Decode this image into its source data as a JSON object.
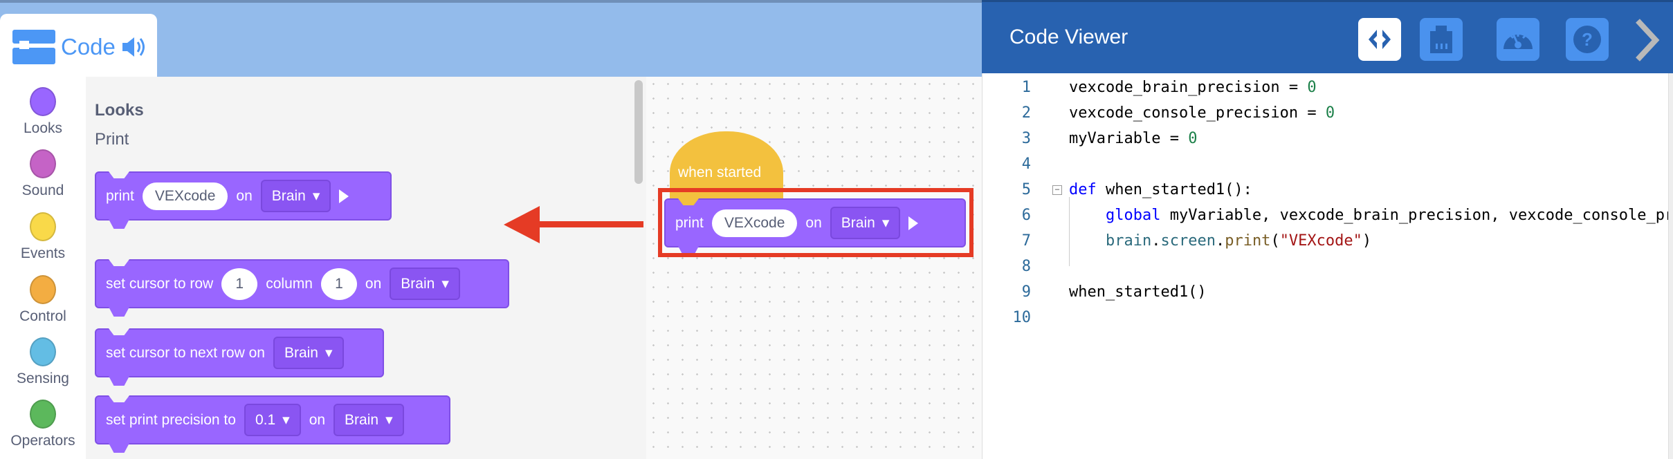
{
  "tab": {
    "label": "Code",
    "icon": "blocks-icon",
    "sound_icon": "speaker-icon"
  },
  "categories": [
    {
      "label": "Looks",
      "color": "#9966ff"
    },
    {
      "label": "Sound",
      "color": "#c563c6"
    },
    {
      "label": "Events",
      "color": "#f9d949"
    },
    {
      "label": "Control",
      "color": "#f3ad42"
    },
    {
      "label": "Sensing",
      "color": "#63bde4"
    },
    {
      "label": "Operators",
      "color": "#5cb85c"
    }
  ],
  "flyout": {
    "heading": "Looks",
    "subheading": "Print",
    "print_block": {
      "label": "print",
      "value": "VEXcode",
      "on": "on",
      "target": "Brain"
    },
    "cursor_block": {
      "label": "set cursor to row",
      "row": "1",
      "column_label": "column",
      "column": "1",
      "on": "on",
      "target": "Brain"
    },
    "next_row_block": {
      "label": "set cursor to next row on",
      "target": "Brain"
    },
    "precision_block": {
      "label": "set print precision to",
      "precision": "0.1",
      "on": "on",
      "target": "Brain"
    }
  },
  "workspace": {
    "hat": "when started",
    "print_block": {
      "label": "print",
      "value": "VEXcode",
      "on": "on",
      "target": "Brain"
    }
  },
  "code_viewer": {
    "title": "Code Viewer",
    "buttons": [
      "code-icon",
      "device-port-icon",
      "dashboard-icon",
      "help-icon",
      "chevron-right-icon"
    ],
    "lines": [
      {
        "n": "1",
        "tokens": [
          [
            "vexcode_brain_precision = ",
            "plain"
          ],
          [
            "0",
            "num"
          ]
        ]
      },
      {
        "n": "2",
        "tokens": [
          [
            "vexcode_console_precision = ",
            "plain"
          ],
          [
            "0",
            "num"
          ]
        ]
      },
      {
        "n": "3",
        "tokens": [
          [
            "myVariable = ",
            "plain"
          ],
          [
            "0",
            "num"
          ]
        ]
      },
      {
        "n": "4",
        "tokens": []
      },
      {
        "n": "5",
        "tokens": [
          [
            "def",
            "kw"
          ],
          [
            " when_started1():",
            "plain"
          ]
        ],
        "fold": true
      },
      {
        "n": "6",
        "tokens": [
          [
            "    ",
            "plain"
          ],
          [
            "global",
            "kw"
          ],
          [
            " myVariable, vexcode_brain_precision, vexcode_console_precision",
            "plain"
          ]
        ]
      },
      {
        "n": "7",
        "tokens": [
          [
            "    ",
            "plain"
          ],
          [
            "brain",
            "obj"
          ],
          [
            ".",
            "plain"
          ],
          [
            "screen",
            "obj"
          ],
          [
            ".",
            "plain"
          ],
          [
            "print",
            "fn"
          ],
          [
            "(",
            "plain"
          ],
          [
            "\"VEXcode\"",
            "str"
          ],
          [
            ")",
            "plain"
          ]
        ]
      },
      {
        "n": "8",
        "tokens": []
      },
      {
        "n": "9",
        "tokens": [
          [
            "when_started1()",
            "plain"
          ]
        ]
      },
      {
        "n": "10",
        "tokens": []
      }
    ]
  }
}
